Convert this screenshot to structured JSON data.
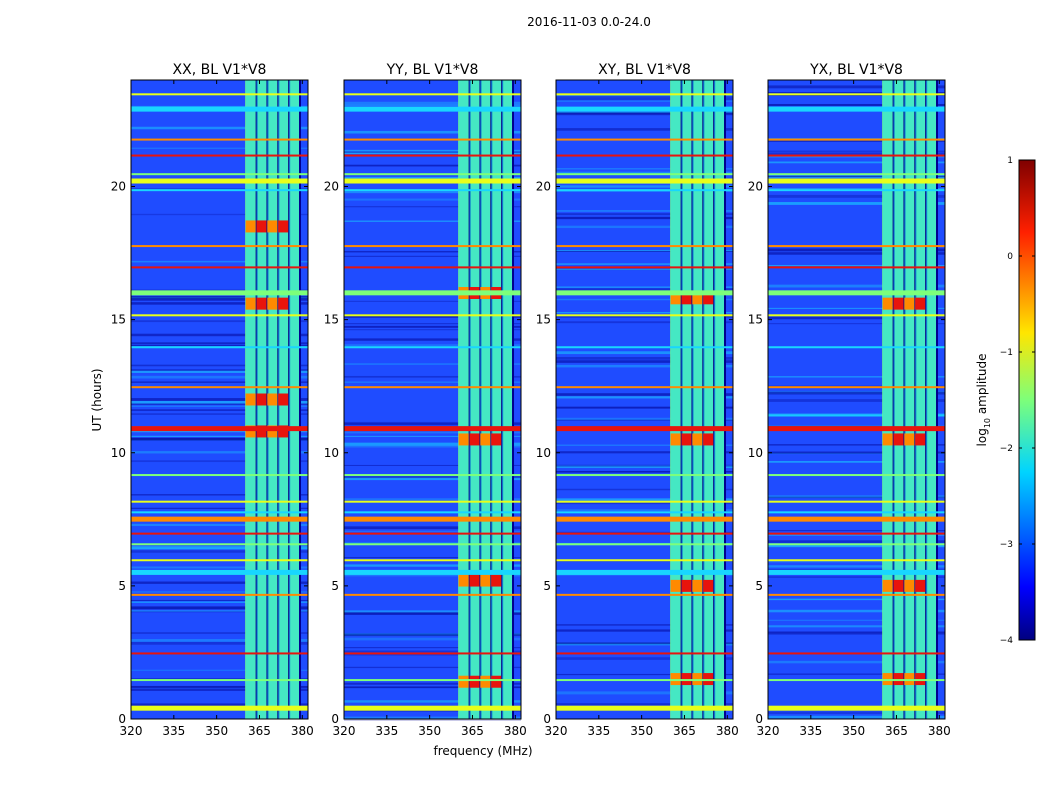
{
  "figure_title": "2016-11-03 0.0-24.0",
  "colors": {
    "low": "#00008f",
    "mid_blue": "#1f4cff",
    "cyan": "#18d6ff",
    "green": "#7dff7a",
    "yellow": "#e8ff1a",
    "orange": "#ff8a00",
    "red": "#e8140c",
    "high": "#7f0000"
  },
  "chart_data": {
    "type": "heatmap",
    "xlabel": "frequency (MHz)",
    "ylabel": "UT (hours)",
    "xlim": [
      320,
      382
    ],
    "ylim": [
      0,
      24
    ],
    "xticks": [
      "320",
      "335",
      "350",
      "365",
      "380"
    ],
    "yticks": [
      "0",
      "5",
      "10",
      "15",
      "20"
    ],
    "panels": [
      {
        "title": "XX, BL V1*V8",
        "band_start_mhz": 360,
        "band_end_mhz": 379,
        "strong_hours": [
          15.6,
          18.5,
          10.8,
          12.0
        ]
      },
      {
        "title": "YY, BL V1*V8",
        "band_start_mhz": 360,
        "band_end_mhz": 379,
        "strong_hours": [
          16.0,
          10.5,
          5.2,
          1.4
        ]
      },
      {
        "title": "XY, BL V1*V8",
        "band_start_mhz": 360,
        "band_end_mhz": 379,
        "strong_hours": [
          15.8,
          10.5,
          5.0,
          1.5
        ]
      },
      {
        "title": "YX, BL V1*V8",
        "band_start_mhz": 360,
        "band_end_mhz": 379,
        "strong_hours": [
          15.6,
          10.5,
          5.0,
          1.5
        ]
      }
    ],
    "rfi_lines_hours": [
      0.5,
      1.5,
      2.5,
      4.7,
      5.6,
      6.0,
      6.6,
      7.0,
      7.6,
      7.8,
      8.2,
      9.2,
      11.0,
      12.5,
      14.0,
      15.2,
      16.1,
      17.0,
      17.8,
      19.9,
      20.3,
      20.5,
      21.2,
      21.8,
      23.0,
      23.5
    ],
    "colorbar": {
      "label_prefix": "log",
      "label_sub": "10",
      "label_suffix": " amplitude",
      "min": -4,
      "max": 1,
      "ticks": [
        "1",
        "0",
        "−1",
        "−2",
        "−3",
        "−4"
      ]
    }
  }
}
